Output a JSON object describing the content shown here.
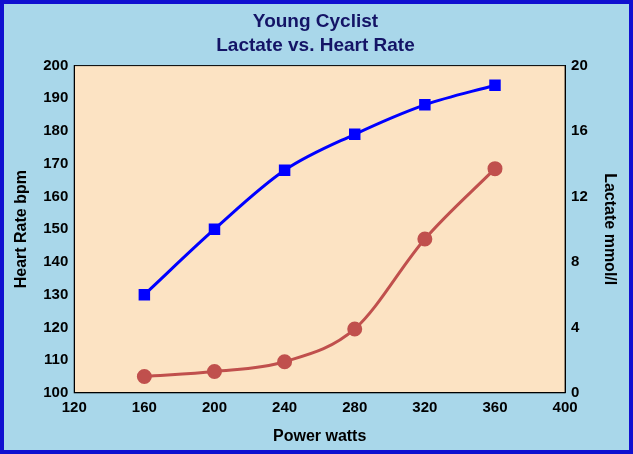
{
  "chart_data": {
    "type": "line",
    "title": "Young Cyclist",
    "subtitle": "Lactate vs. Heart Rate",
    "x_label": "Power watts",
    "y_label": "Heart Rate bpm",
    "y2_label": "Lactate mmol/l",
    "x": [
      160,
      200,
      240,
      280,
      320,
      360
    ],
    "series": [
      {
        "color": "#0000ff",
        "marker": "square",
        "line_style": "solid",
        "axis": "y",
        "values": [
          130,
          150,
          168,
          179,
          188,
          194
        ]
      },
      {
        "color": "#c0504d",
        "marker": "circle",
        "line_style": "solid",
        "axis": "y2",
        "values": [
          1.0,
          1.3,
          1.9,
          3.9,
          9.4,
          13.7
        ]
      }
    ],
    "xlim": [
      120,
      400
    ],
    "xticks": [
      120,
      160,
      200,
      240,
      280,
      320,
      360,
      400
    ],
    "ylim": [
      100,
      200
    ],
    "yticks": [
      100,
      110,
      120,
      130,
      140,
      150,
      160,
      170,
      180,
      190,
      200
    ],
    "y2lim": [
      0,
      20
    ],
    "y2ticks": [
      0,
      4,
      8,
      12,
      16,
      20
    ],
    "grid": false
  }
}
